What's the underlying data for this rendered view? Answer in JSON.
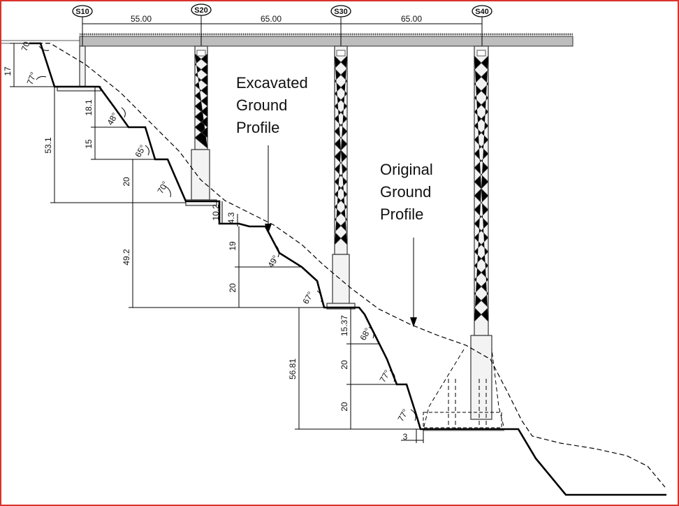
{
  "supports": [
    "S10",
    "S20",
    "S30",
    "S40"
  ],
  "spans": [
    "55.00",
    "65.00",
    "65.00"
  ],
  "annotations": {
    "excavated": [
      "Excavated",
      "Ground",
      "Profile"
    ],
    "original": [
      "Original",
      "Ground",
      "Profile"
    ]
  },
  "dimensions": {
    "left_17": "17",
    "left_53_1": "53.1",
    "d_18_1": "18.1",
    "d_15": "15",
    "d_20a": "20",
    "d_49_2": "49.2",
    "d_10_2": "10.2",
    "d_4_3": "4.3",
    "d_19": "19",
    "d_20b": "20",
    "d_56_81": "56.81",
    "d_15_37": "15.37",
    "d_20c": "20",
    "d_20d": "20",
    "d_3": "3"
  },
  "angles": {
    "a_70_top": "70",
    "a_77_top": "77°",
    "a_48": "48°",
    "a_65": "65°",
    "a_70": "70°",
    "a_49": "49°",
    "a_67": "67°",
    "a_68": "68°",
    "a_77_mid": "77°",
    "a_77_low": "77°"
  },
  "colors": {
    "frame": "#d9332b",
    "deck": "#bdbdbd",
    "line": "#000000"
  }
}
